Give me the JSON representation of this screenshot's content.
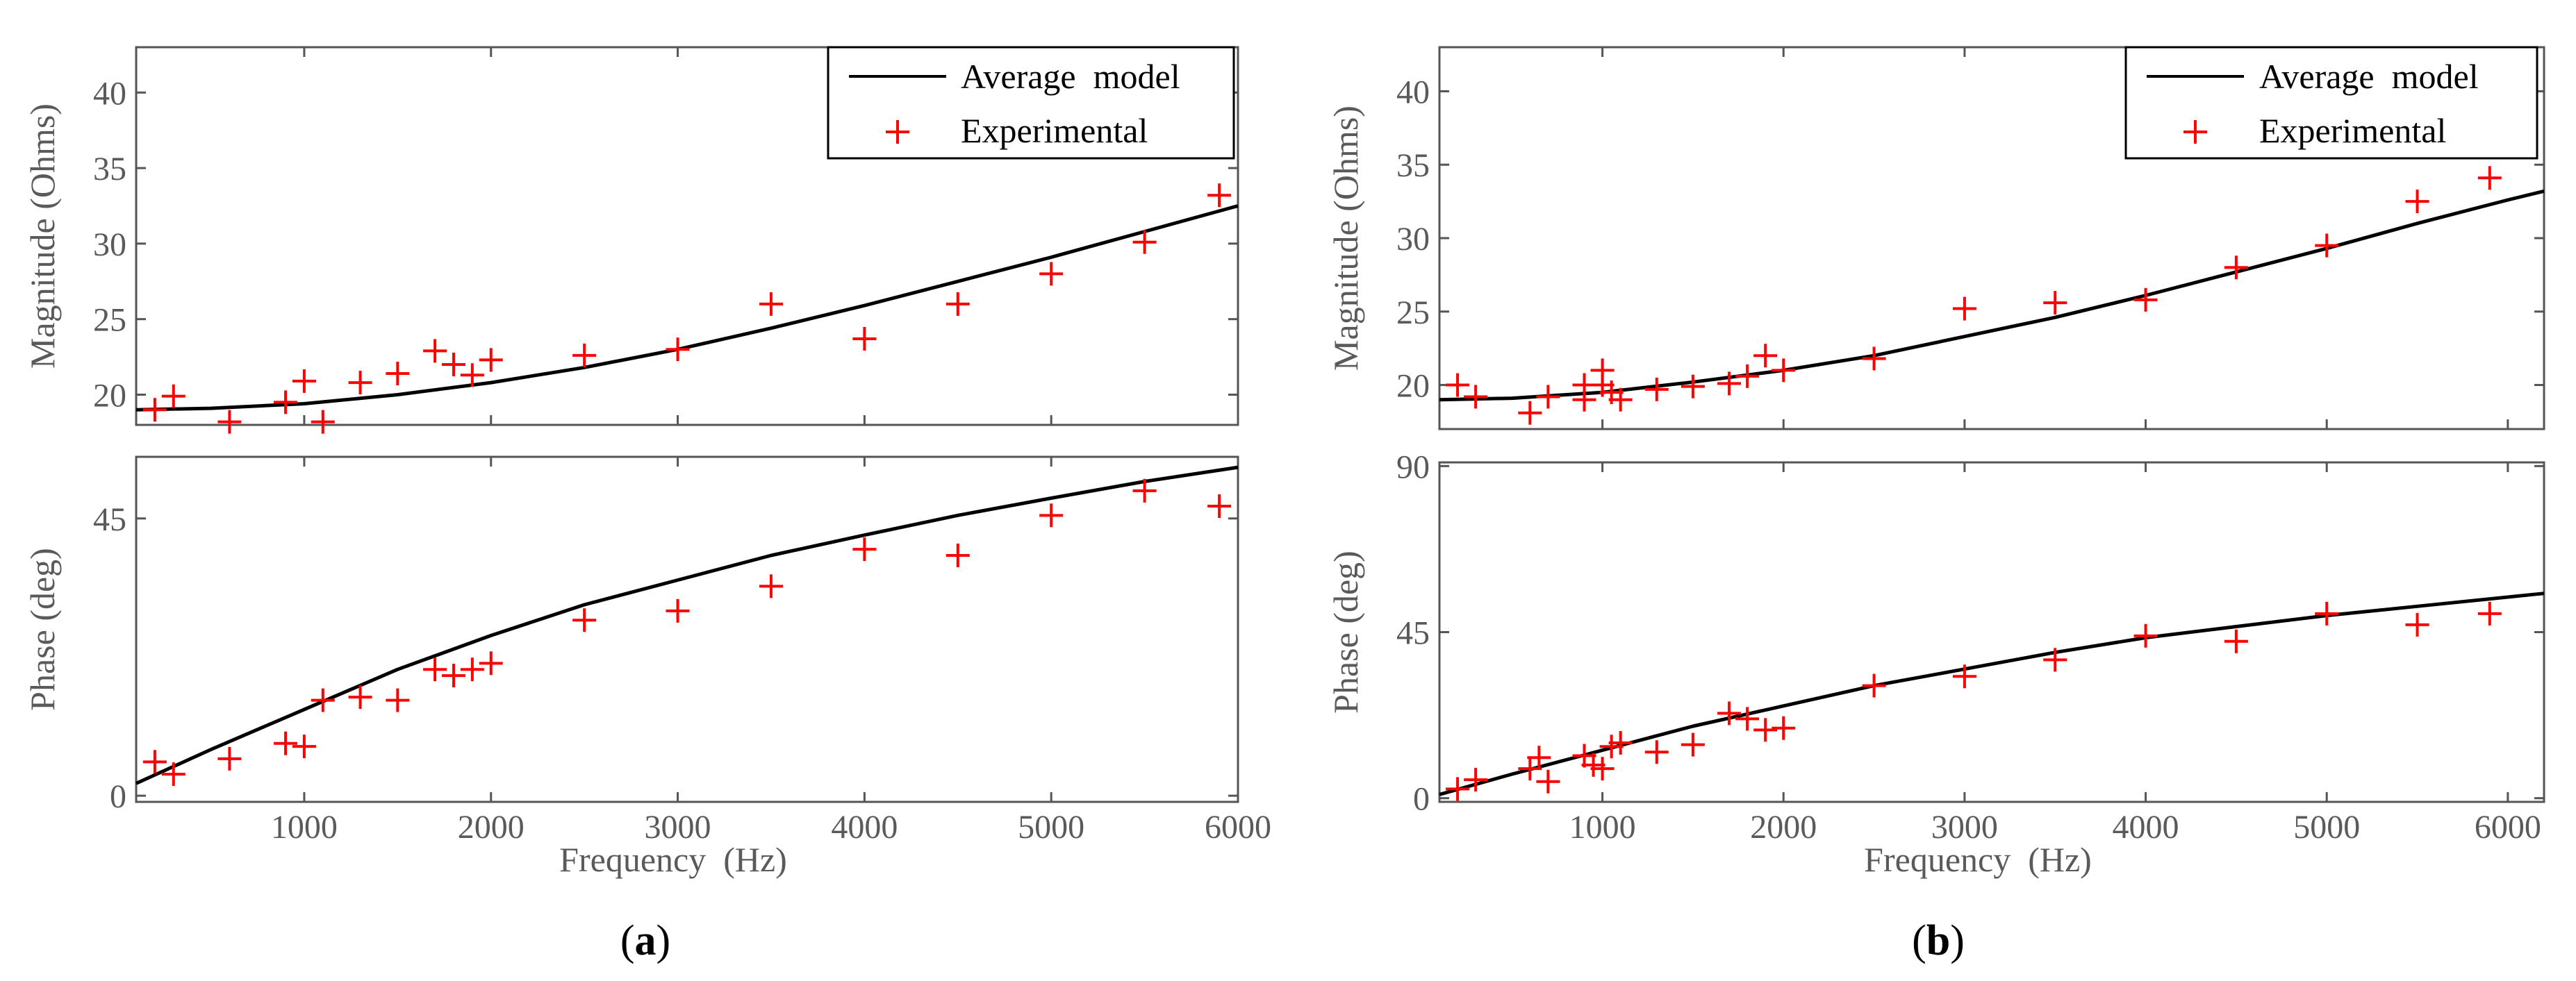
{
  "colors": {
    "model": "#000000",
    "experimental": "#ff0000",
    "axis": "#555555",
    "text": "#5a5a5a"
  },
  "legend": {
    "model": "Average  model",
    "experimental": "Experimental",
    "placement": "top-right"
  },
  "captions": [
    {
      "open": "(",
      "letter": "a",
      "close": ")"
    },
    {
      "open": "(",
      "letter": "b",
      "close": ")"
    }
  ],
  "chart_data": [
    {
      "panel": "a",
      "type": "line",
      "subplot": "magnitude",
      "title": "",
      "xlabel": "",
      "ylabel": "Magnitude (Ohms)",
      "xlim": [
        100,
        6000
      ],
      "ylim": [
        18,
        43
      ],
      "xticks": [
        1000,
        2000,
        3000,
        4000,
        5000,
        6000
      ],
      "xtick_labels": [],
      "yticks": [
        20,
        25,
        30,
        35,
        40
      ],
      "ytick_labels": [
        "20",
        "25",
        "30",
        "35",
        "40"
      ],
      "series": [
        {
          "name": "Average  model",
          "kind": "line",
          "x": [
            100,
            500,
            1000,
            1500,
            2000,
            2500,
            3000,
            3500,
            4000,
            4500,
            5000,
            5500,
            6000
          ],
          "y": [
            19.0,
            19.1,
            19.4,
            20.0,
            20.8,
            21.8,
            23.0,
            24.4,
            25.9,
            27.5,
            29.1,
            30.8,
            32.5
          ]
        },
        {
          "name": "Experimental",
          "kind": "scatter",
          "x": [
            200,
            300,
            600,
            900,
            1000,
            1100,
            1300,
            1500,
            1700,
            1800,
            1900,
            2000,
            2500,
            3000,
            3500,
            4000,
            4500,
            5000,
            5500,
            5900
          ],
          "y": [
            19.0,
            19.9,
            18.2,
            19.5,
            20.9,
            18.2,
            20.8,
            21.4,
            22.9,
            22.0,
            21.3,
            22.3,
            22.6,
            23.0,
            26.0,
            23.7,
            26.0,
            28.0,
            30.1,
            33.2
          ]
        }
      ]
    },
    {
      "panel": "a",
      "type": "line",
      "subplot": "phase",
      "title": "",
      "xlabel": "Frequency  (Hz)",
      "ylabel": "Phase (deg)",
      "xlim": [
        100,
        6000
      ],
      "ylim": [
        -1,
        55
      ],
      "xticks": [
        1000,
        2000,
        3000,
        4000,
        5000,
        6000
      ],
      "xtick_labels": [
        "1000",
        "2000",
        "3000",
        "4000",
        "5000",
        "6000"
      ],
      "yticks": [
        0,
        45
      ],
      "ytick_labels": [
        "0",
        "45"
      ],
      "series": [
        {
          "name": "Average  model",
          "kind": "line",
          "x": [
            100,
            500,
            1000,
            1500,
            2000,
            2500,
            3000,
            3500,
            4000,
            4500,
            5000,
            5500,
            6000
          ],
          "y": [
            2,
            7.5,
            14,
            20.5,
            26,
            31,
            35,
            39,
            42.3,
            45.5,
            48.3,
            51,
            53.3
          ]
        },
        {
          "name": "Experimental",
          "kind": "scatter",
          "x": [
            200,
            300,
            600,
            900,
            1000,
            1100,
            1300,
            1500,
            1700,
            1800,
            1900,
            2000,
            2500,
            3000,
            3500,
            4000,
            4500,
            5000,
            5500,
            5900
          ],
          "y": [
            5.5,
            3.5,
            6,
            8.5,
            8,
            15.5,
            16,
            15.5,
            20.5,
            19.5,
            20.5,
            21.5,
            28.5,
            30,
            34,
            40,
            39,
            45.5,
            49.5,
            47
          ]
        }
      ]
    },
    {
      "panel": "b",
      "type": "line",
      "subplot": "magnitude",
      "title": "",
      "xlabel": "",
      "ylabel": "Magnitude (Ohms)",
      "xlim": [
        100,
        6200
      ],
      "ylim": [
        17,
        43
      ],
      "xticks": [
        1000,
        2000,
        3000,
        4000,
        5000,
        6000
      ],
      "xtick_labels": [],
      "yticks": [
        20,
        25,
        30,
        35,
        40
      ],
      "ytick_labels": [
        "20",
        "25",
        "30",
        "35",
        "40"
      ],
      "series": [
        {
          "name": "Average  model",
          "kind": "line",
          "x": [
            100,
            500,
            1000,
            1500,
            2000,
            2500,
            3000,
            3500,
            4000,
            4500,
            5000,
            5500,
            6000,
            6200
          ],
          "y": [
            19.0,
            19.1,
            19.5,
            20.2,
            21.0,
            22.0,
            23.3,
            24.6,
            26.1,
            27.7,
            29.3,
            31.0,
            32.6,
            33.2
          ]
        },
        {
          "name": "Experimental",
          "kind": "scatter",
          "x": [
            200,
            300,
            600,
            700,
            900,
            900,
            1000,
            1000,
            1050,
            1100,
            1300,
            1500,
            1700,
            1800,
            1900,
            2000,
            2500,
            3000,
            3500,
            4000,
            4500,
            5000,
            5500,
            5900
          ],
          "y": [
            20.0,
            19.2,
            18.1,
            19.2,
            20.0,
            19.0,
            21.0,
            20.0,
            19.5,
            19.0,
            19.7,
            19.9,
            20.1,
            20.6,
            22.0,
            21.0,
            21.8,
            25.2,
            25.6,
            25.8,
            28.0,
            29.5,
            32.5,
            34.1
          ]
        }
      ]
    },
    {
      "panel": "b",
      "type": "line",
      "subplot": "phase",
      "title": "",
      "xlabel": "Frequency  (Hz)",
      "ylabel": "Phase (deg)",
      "xlim": [
        100,
        6200
      ],
      "ylim": [
        -1,
        91
      ],
      "xticks": [
        1000,
        2000,
        3000,
        4000,
        5000,
        6000
      ],
      "xtick_labels": [
        "1000",
        "2000",
        "3000",
        "4000",
        "5000",
        "6000"
      ],
      "yticks": [
        0,
        45,
        90
      ],
      "ytick_labels": [
        "0",
        "45",
        "90"
      ],
      "series": [
        {
          "name": "Average  model",
          "kind": "line",
          "x": [
            100,
            500,
            1000,
            1500,
            2000,
            2500,
            3000,
            3500,
            4000,
            4500,
            5000,
            5500,
            6000,
            6200
          ],
          "y": [
            1,
            6.5,
            13,
            19.5,
            25,
            30.5,
            35,
            39.5,
            43.5,
            46.5,
            49.5,
            52,
            54.5,
            55.5
          ]
        },
        {
          "name": "Experimental",
          "kind": "scatter",
          "x": [
            200,
            300,
            600,
            650,
            700,
            900,
            950,
            1000,
            1050,
            1100,
            1300,
            1500,
            1700,
            1800,
            1900,
            2000,
            2500,
            3000,
            3500,
            4000,
            4500,
            5000,
            5500,
            5900
          ],
          "y": [
            2.5,
            5,
            8,
            11,
            4.5,
            11.5,
            9,
            8,
            14,
            15,
            12.5,
            14.5,
            23,
            21.5,
            18.5,
            19,
            30.5,
            33,
            37.5,
            44,
            42.5,
            50,
            47,
            50
          ]
        }
      ]
    }
  ]
}
